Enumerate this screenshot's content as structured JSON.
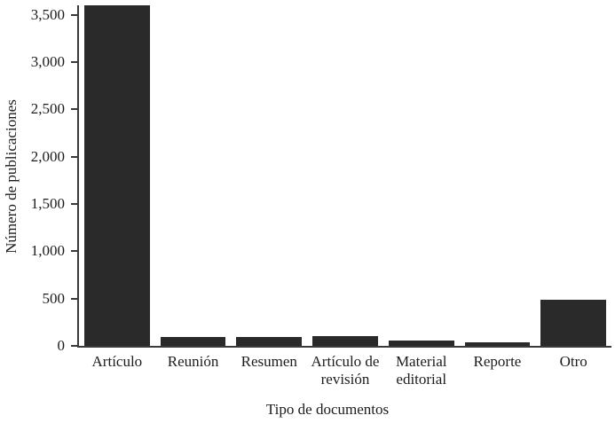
{
  "chart_data": {
    "type": "bar",
    "categories": [
      "Artículo",
      "Reunión",
      "Resumen",
      "Artículo de revisión",
      "Material editorial",
      "Reporte",
      "Otro"
    ],
    "values": [
      3600,
      90,
      95,
      100,
      60,
      40,
      490
    ],
    "title": "",
    "xlabel": "Tipo de documentos",
    "ylabel": "Número de publicaciones",
    "ylim": [
      0,
      3600
    ],
    "yticks": [
      0,
      500,
      1000,
      1500,
      2000,
      2500,
      3000,
      3500
    ],
    "ytick_labels": [
      "0",
      "500",
      "1,000",
      "1,500",
      "2,000",
      "2,500",
      "3,000",
      "3,500"
    ],
    "grid": false,
    "legend": "none",
    "bar_color": "#2a2a2a",
    "axis_color": "#3a3a3a",
    "text_color": "#1c1c1c",
    "background_color": "#ffffff"
  }
}
